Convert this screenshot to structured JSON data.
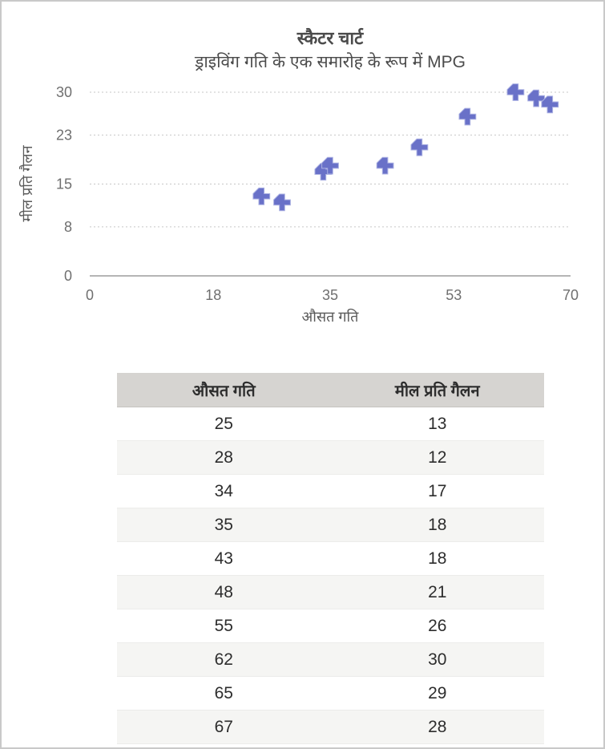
{
  "window": {
    "background": "#ffffff",
    "border_color": "#c9c9c9"
  },
  "chart_data": {
    "type": "scatter",
    "title": "स्कैटर चार्ट",
    "subtitle": "ड्राइविंग गति के एक समारोह के रूप में MPG",
    "xlabel": "औसत गति",
    "ylabel": "मील प्रति गैलन",
    "xlim": [
      0,
      70
    ],
    "ylim": [
      0,
      30
    ],
    "x_ticks": [
      0,
      18,
      35,
      53,
      70
    ],
    "y_ticks": [
      0,
      8,
      15,
      23,
      30
    ],
    "grid": "horizontal-dashed",
    "legend": "none",
    "marker": "plus",
    "marker_color": "#6971c8",
    "marker_outline": "#aab0e2",
    "gridline_color": "#c7c7c7",
    "axis_line_color": "#b5b5b5",
    "tick_label_color": "#6f6f6f",
    "points": [
      {
        "x": 25,
        "y": 13
      },
      {
        "x": 28,
        "y": 12
      },
      {
        "x": 34,
        "y": 17
      },
      {
        "x": 35,
        "y": 18
      },
      {
        "x": 43,
        "y": 18
      },
      {
        "x": 48,
        "y": 21
      },
      {
        "x": 55,
        "y": 26
      },
      {
        "x": 62,
        "y": 30
      },
      {
        "x": 65,
        "y": 29
      },
      {
        "x": 67,
        "y": 28
      }
    ]
  },
  "table": {
    "headers": [
      "औसत गति",
      "मील प्रति गैलन"
    ],
    "rows": [
      [
        "25",
        "13"
      ],
      [
        "28",
        "12"
      ],
      [
        "34",
        "17"
      ],
      [
        "35",
        "18"
      ],
      [
        "43",
        "18"
      ],
      [
        "48",
        "21"
      ],
      [
        "55",
        "26"
      ],
      [
        "62",
        "30"
      ],
      [
        "65",
        "29"
      ],
      [
        "67",
        "28"
      ]
    ],
    "header_bg": "#d6d4d1",
    "alt_row_bg": "#f5f5f3"
  }
}
